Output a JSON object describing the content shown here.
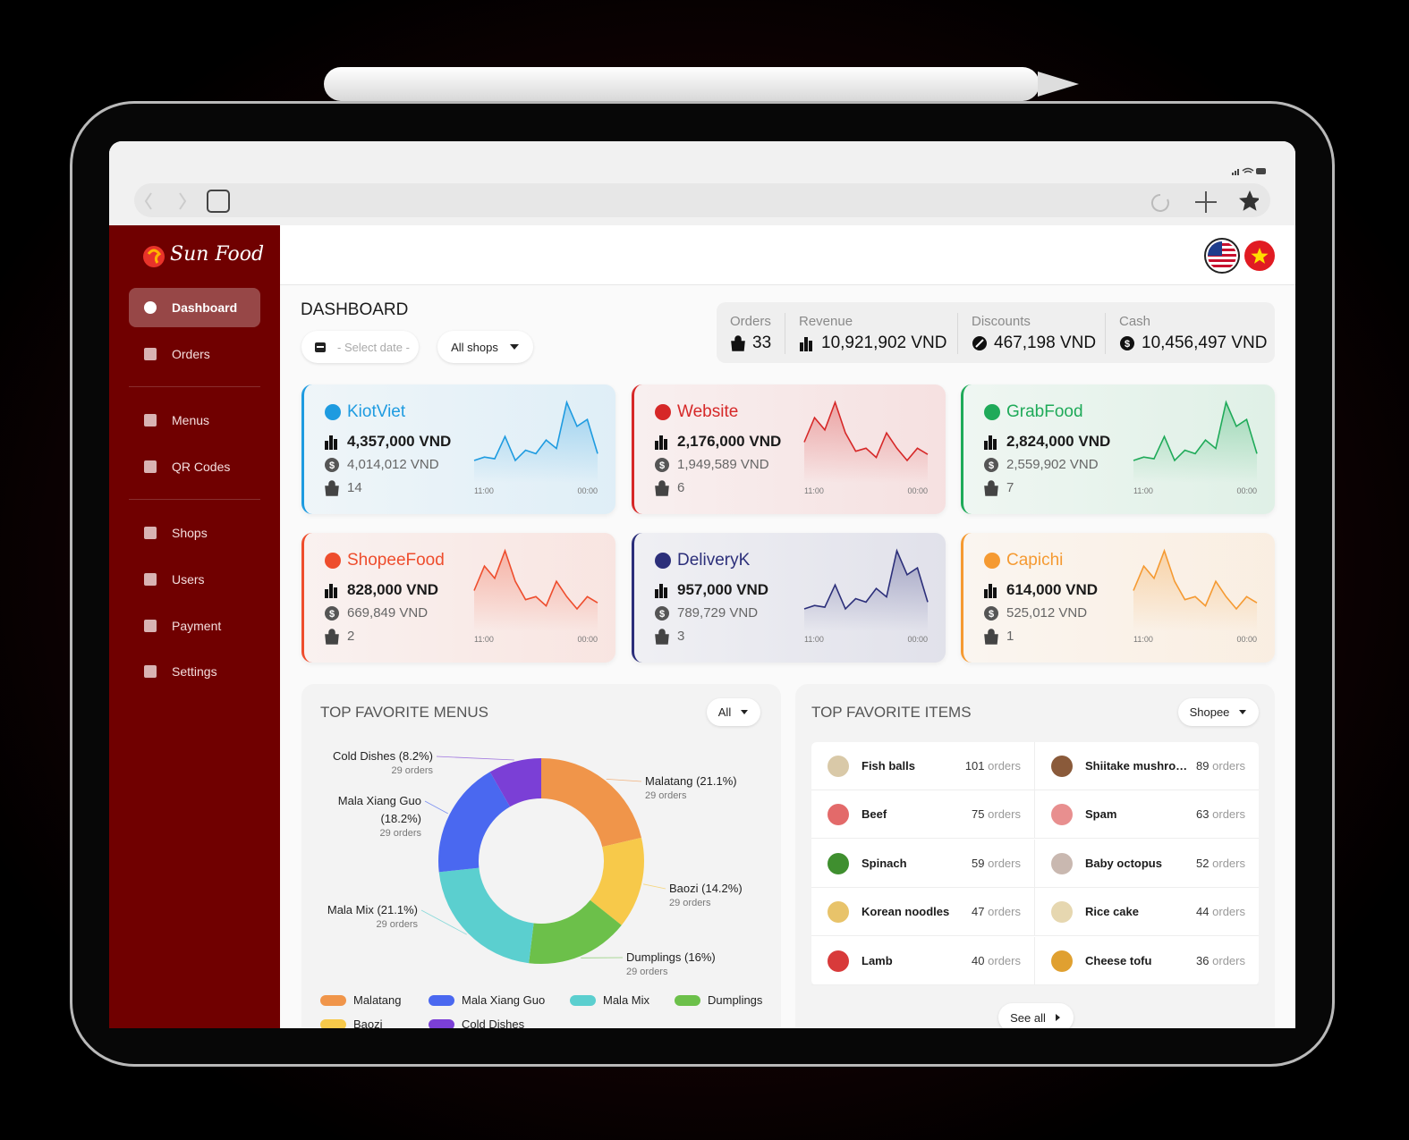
{
  "sidebar": {
    "brand": "Sun Food",
    "nav": [
      "Dashboard",
      "Orders",
      "Menus",
      "QR Codes",
      "Shops",
      "Users",
      "Payment",
      "Settings"
    ]
  },
  "dashboard": {
    "title": "DASHBOARD",
    "date_placeholder": "- Select date -",
    "shop_filter": "All shops"
  },
  "summary": [
    {
      "label": "Orders",
      "value": "33"
    },
    {
      "label": "Revenue",
      "value": "10,921,902 VND"
    },
    {
      "label": "Discounts",
      "value": "467,198 VND"
    },
    {
      "label": "Cash",
      "value": "10,456,497 VND"
    }
  ],
  "channels": [
    {
      "name": "KiotViet",
      "color": "#1e9be0",
      "revenue": "4,357,000 VND",
      "net": "4,014,012 VND",
      "orders": 14,
      "trend": {
        "x_labels": [
          "11:00",
          "00:00"
        ],
        "values": [
          8,
          10,
          9,
          22,
          8,
          14,
          12,
          20,
          15,
          42,
          28,
          32,
          12
        ]
      }
    },
    {
      "name": "Website",
      "color": "#d62828",
      "revenue": "2,176,000 VND",
      "net": "1,949,589 VND",
      "orders": 6,
      "trend": {
        "x_labels": [
          "11:00",
          "00:00"
        ],
        "values": [
          18,
          34,
          26,
          44,
          24,
          12,
          14,
          8,
          24,
          14,
          6,
          14,
          10
        ]
      }
    },
    {
      "name": "GrabFood",
      "color": "#1faa59",
      "revenue": "2,824,000 VND",
      "net": "2,559,902 VND",
      "orders": 7,
      "trend": {
        "x_labels": [
          "11:00",
          "00:00"
        ],
        "values": [
          8,
          10,
          9,
          22,
          8,
          14,
          12,
          20,
          15,
          42,
          28,
          32,
          12
        ]
      }
    },
    {
      "name": "ShopeeFood",
      "color": "#ee4d2d",
      "revenue": "828,000 VND",
      "net": "669,849 VND",
      "orders": 2,
      "trend": {
        "x_labels": [
          "11:00",
          "00:00"
        ],
        "values": [
          18,
          34,
          26,
          44,
          24,
          12,
          14,
          8,
          24,
          14,
          6,
          14,
          10
        ]
      }
    },
    {
      "name": "DeliveryK",
      "color": "#2c2f7a",
      "revenue": "957,000 VND",
      "net": "789,729 VND",
      "orders": 3,
      "trend": {
        "x_labels": [
          "11:00",
          "00:00"
        ],
        "values": [
          8,
          10,
          9,
          22,
          8,
          14,
          12,
          20,
          15,
          42,
          28,
          32,
          12
        ]
      }
    },
    {
      "name": "Capichi",
      "color": "#f59a32",
      "revenue": "614,000 VND",
      "net": "525,012 VND",
      "orders": 1,
      "trend": {
        "x_labels": [
          "11:00",
          "00:00"
        ],
        "values": [
          18,
          34,
          26,
          44,
          24,
          12,
          14,
          8,
          24,
          14,
          6,
          14,
          10
        ]
      }
    }
  ],
  "favorite_menus": {
    "title": "TOP FAVORITE MENUS",
    "filter": "All",
    "chart": {
      "type": "donut",
      "slices": [
        {
          "name": "Malatang",
          "value": 21.1,
          "label": "Malatang (21.1%)",
          "orders": "29 orders",
          "color": "#f0954a"
        },
        {
          "name": "Baozi",
          "value": 14.2,
          "label": "Baozi (14.2%)",
          "orders": "29 orders",
          "color": "#f7c94a"
        },
        {
          "name": "Dumplings",
          "value": 16,
          "label": "Dumplings (16%)",
          "orders": "29 orders",
          "color": "#6cc04a"
        },
        {
          "name": "Mala Mix",
          "value": 21.1,
          "label": "Mala Mix (21.1%)",
          "orders": "29 orders",
          "color": "#5bcfcf"
        },
        {
          "name": "Mala Xiang Guo",
          "value": 18.2,
          "label": "Mala Xiang Guo (18.2%)",
          "orders": "29 orders",
          "color": "#4a68f0"
        },
        {
          "name": "Cold Dishes",
          "value": 8.2,
          "label": "Cold Dishes (8.2%)",
          "orders": "29 orders",
          "color": "#7b3fd6"
        }
      ]
    }
  },
  "favorite_items": {
    "title": "TOP FAVORITE ITEMS",
    "filter": "Shopee",
    "see_all": "See all",
    "items": [
      {
        "name": "Fish balls",
        "count": 101,
        "unit": "orders"
      },
      {
        "name": "Shiitake mushro…",
        "count": 89,
        "unit": "orders"
      },
      {
        "name": "Beef",
        "count": 75,
        "unit": "orders"
      },
      {
        "name": "Spam",
        "count": 63,
        "unit": "orders"
      },
      {
        "name": "Spinach",
        "count": 59,
        "unit": "orders"
      },
      {
        "name": "Baby octopus",
        "count": 52,
        "unit": "orders"
      },
      {
        "name": "Korean noodles",
        "count": 47,
        "unit": "orders"
      },
      {
        "name": "Rice cake",
        "count": 44,
        "unit": "orders"
      },
      {
        "name": "Lamb",
        "count": 40,
        "unit": "orders"
      },
      {
        "name": "Cheese tofu",
        "count": 36,
        "unit": "orders"
      }
    ]
  }
}
